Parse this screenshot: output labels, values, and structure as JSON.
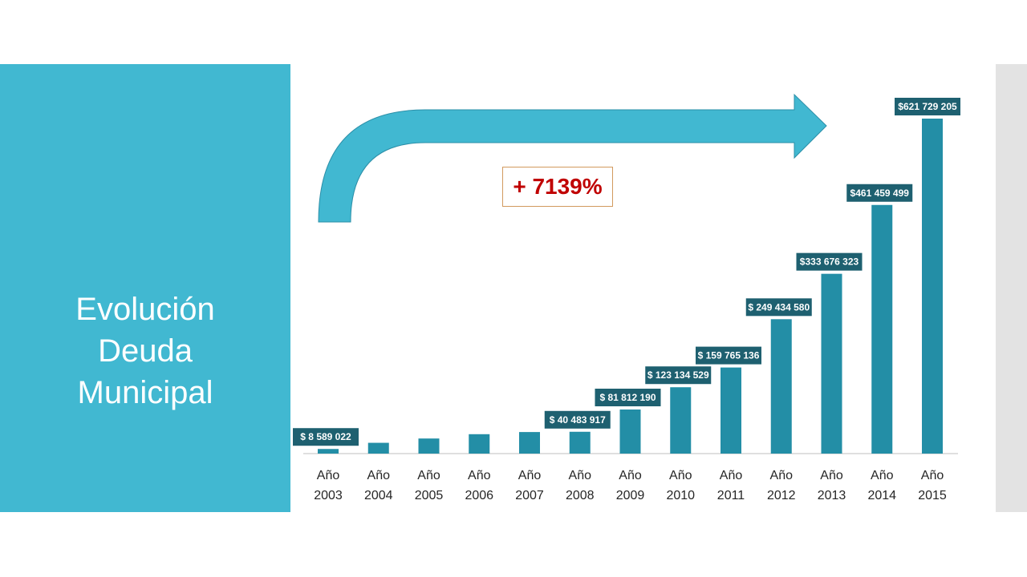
{
  "slide": {
    "title_lines": [
      "Evolución",
      "Deuda",
      "Municipal"
    ],
    "growth_label": "+ 7139%"
  },
  "colors": {
    "panel": "#41b8d1",
    "bar": "#238ea6",
    "label_bg": "#1e6070",
    "arrow": "#41b8d1",
    "callout_text": "#c00000",
    "strip": "#e3e3e3"
  },
  "chart_data": {
    "type": "bar",
    "categories": [
      [
        "Año",
        "2003"
      ],
      [
        "Año",
        "2004"
      ],
      [
        "Año",
        "2005"
      ],
      [
        "Año",
        "2006"
      ],
      [
        "Año",
        "2007"
      ],
      [
        "Año",
        "2008"
      ],
      [
        "Año",
        "2009"
      ],
      [
        "Año",
        "2010"
      ],
      [
        "Año",
        "2011"
      ],
      [
        "Año",
        "2012"
      ],
      [
        "Año",
        "2013"
      ],
      [
        "Año",
        "2014"
      ],
      [
        "Año",
        "2015"
      ]
    ],
    "values": [
      8589022,
      20000000,
      28000000,
      36000000,
      40000000,
      40483917,
      81812190,
      123134529,
      159765136,
      249434580,
      333676323,
      461459499,
      621729205
    ],
    "data_labels": [
      "$ 8 589 022",
      "",
      "",
      "",
      "",
      "$ 40 483 917",
      "$ 81 812 190",
      "$ 123 134 529",
      "$ 159 765 136",
      "$ 249 434 580",
      "$333 676 323",
      "$461 459 499",
      "$621 729 205"
    ],
    "title": "",
    "xlabel": "",
    "ylabel": "",
    "ylim": [
      0,
      621729205
    ],
    "grid": false,
    "legend": "none"
  }
}
